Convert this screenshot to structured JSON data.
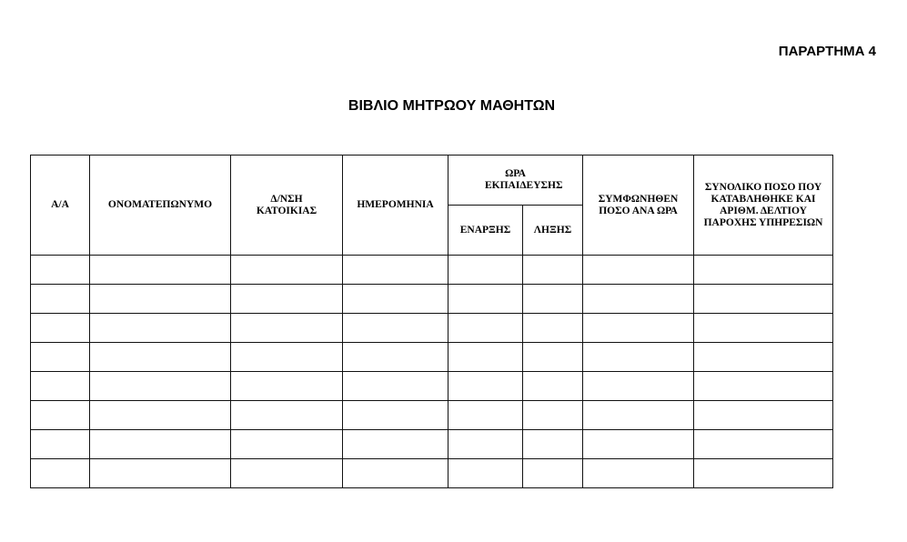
{
  "annex_label": "ΠΑΡΑΡΤΗΜΑ 4",
  "title": "ΒΙΒΛΙΟ ΜΗΤΡΩΟΥ ΜΑΘΗΤΩΝ",
  "table": {
    "headers": {
      "aa": "Α/Α",
      "name": "ΟΝΟΜΑΤΕΠΩΝΥΜΟ",
      "address": "Δ/ΝΣΗ ΚΑΤΟΙΚΙΑΣ",
      "date": "ΗΜΕΡΟΜΗΝΙΑ",
      "training_hour": "ΩΡΑ ΕΚΠΑΙΔΕΥΣΗΣ",
      "start": "ΕΝΑΡΞΗΣ",
      "end": "ΛΗΞΗΣ",
      "rate": "ΣΥΜΦΩΝΗΘΕΝ ΠΟΣΟ ΑΝΑ ΩΡΑ",
      "total": "ΣΥΝΟΛΙΚΟ ΠΟΣΟ ΠΟΥ ΚΑΤΑΒΛΗΘΗΚΕ ΚΑΙ ΑΡΙΘΜ. ΔΕΛΤΙΟΥ ΠΑΡΟΧΗΣ ΥΠΗΡΕΣΙΩΝ"
    },
    "rows": [
      [
        "",
        "",
        "",
        "",
        "",
        "",
        "",
        ""
      ],
      [
        "",
        "",
        "",
        "",
        "",
        "",
        "",
        ""
      ],
      [
        "",
        "",
        "",
        "",
        "",
        "",
        "",
        ""
      ],
      [
        "",
        "",
        "",
        "",
        "",
        "",
        "",
        ""
      ],
      [
        "",
        "",
        "",
        "",
        "",
        "",
        "",
        ""
      ],
      [
        "",
        "",
        "",
        "",
        "",
        "",
        "",
        ""
      ],
      [
        "",
        "",
        "",
        "",
        "",
        "",
        "",
        ""
      ],
      [
        "",
        "",
        "",
        "",
        "",
        "",
        "",
        ""
      ]
    ]
  }
}
